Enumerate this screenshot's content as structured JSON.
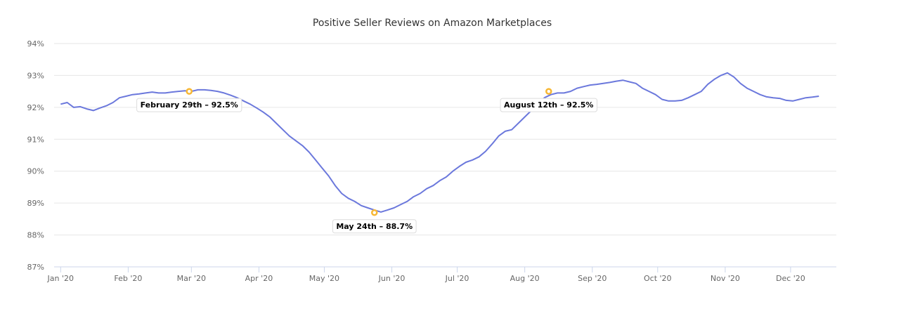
{
  "chart_data": {
    "type": "line",
    "title": "Positive Seller Reviews on Amazon Marketplaces",
    "xlabel": "",
    "ylabel": "",
    "ylim": [
      87,
      94
    ],
    "y_ticks": [
      87,
      88,
      89,
      90,
      91,
      92,
      93,
      94
    ],
    "y_tick_suffix": "%",
    "x_ticks": [
      {
        "day": 0,
        "label": "Jan '20"
      },
      {
        "day": 31,
        "label": "Feb '20"
      },
      {
        "day": 60,
        "label": "Mar '20"
      },
      {
        "day": 91,
        "label": "Apr '20"
      },
      {
        "day": 121,
        "label": "May '20"
      },
      {
        "day": 152,
        "label": "Jun '20"
      },
      {
        "day": 182,
        "label": "Jul '20"
      },
      {
        "day": 213,
        "label": "Aug '20"
      },
      {
        "day": 244,
        "label": "Sep '20"
      },
      {
        "day": 274,
        "label": "Oct '20"
      },
      {
        "day": 305,
        "label": "Nov '20"
      },
      {
        "day": 335,
        "label": "Dec '20"
      }
    ],
    "x_range": [
      -3,
      356
    ],
    "series": [
      {
        "name": "Positive Seller Reviews",
        "color": "#6b78dc",
        "points": [
          [
            0,
            92.1
          ],
          [
            3,
            92.15
          ],
          [
            6,
            92.0
          ],
          [
            9,
            92.02
          ],
          [
            12,
            91.95
          ],
          [
            15,
            91.9
          ],
          [
            18,
            91.98
          ],
          [
            21,
            92.05
          ],
          [
            24,
            92.15
          ],
          [
            27,
            92.3
          ],
          [
            30,
            92.35
          ],
          [
            33,
            92.4
          ],
          [
            36,
            92.42
          ],
          [
            39,
            92.45
          ],
          [
            42,
            92.48
          ],
          [
            45,
            92.45
          ],
          [
            48,
            92.45
          ],
          [
            51,
            92.48
          ],
          [
            54,
            92.5
          ],
          [
            57,
            92.52
          ],
          [
            60,
            92.5
          ],
          [
            63,
            92.55
          ],
          [
            66,
            92.55
          ],
          [
            69,
            92.53
          ],
          [
            72,
            92.5
          ],
          [
            75,
            92.45
          ],
          [
            78,
            92.38
          ],
          [
            81,
            92.3
          ],
          [
            84,
            92.2
          ],
          [
            87,
            92.1
          ],
          [
            90,
            91.98
          ],
          [
            93,
            91.85
          ],
          [
            96,
            91.7
          ],
          [
            99,
            91.5
          ],
          [
            102,
            91.3
          ],
          [
            105,
            91.1
          ],
          [
            108,
            90.95
          ],
          [
            111,
            90.8
          ],
          [
            114,
            90.6
          ],
          [
            117,
            90.35
          ],
          [
            120,
            90.1
          ],
          [
            123,
            89.85
          ],
          [
            126,
            89.55
          ],
          [
            129,
            89.3
          ],
          [
            132,
            89.15
          ],
          [
            135,
            89.05
          ],
          [
            138,
            88.92
          ],
          [
            141,
            88.85
          ],
          [
            144,
            88.78
          ],
          [
            147,
            88.72
          ],
          [
            150,
            88.78
          ],
          [
            153,
            88.85
          ],
          [
            156,
            88.95
          ],
          [
            159,
            89.05
          ],
          [
            162,
            89.2
          ],
          [
            165,
            89.3
          ],
          [
            168,
            89.45
          ],
          [
            171,
            89.55
          ],
          [
            174,
            89.7
          ],
          [
            177,
            89.82
          ],
          [
            180,
            90.0
          ],
          [
            183,
            90.15
          ],
          [
            186,
            90.28
          ],
          [
            189,
            90.35
          ],
          [
            192,
            90.45
          ],
          [
            195,
            90.62
          ],
          [
            198,
            90.85
          ],
          [
            201,
            91.1
          ],
          [
            204,
            91.25
          ],
          [
            207,
            91.3
          ],
          [
            210,
            91.5
          ],
          [
            213,
            91.7
          ],
          [
            216,
            91.9
          ],
          [
            219,
            92.1
          ],
          [
            222,
            92.3
          ],
          [
            225,
            92.4
          ],
          [
            228,
            92.45
          ],
          [
            231,
            92.45
          ],
          [
            234,
            92.5
          ],
          [
            237,
            92.6
          ],
          [
            240,
            92.65
          ],
          [
            243,
            92.7
          ],
          [
            246,
            92.72
          ],
          [
            249,
            92.75
          ],
          [
            252,
            92.78
          ],
          [
            255,
            92.82
          ],
          [
            258,
            92.85
          ],
          [
            261,
            92.8
          ],
          [
            264,
            92.75
          ],
          [
            267,
            92.6
          ],
          [
            270,
            92.5
          ],
          [
            273,
            92.4
          ],
          [
            276,
            92.25
          ],
          [
            279,
            92.2
          ],
          [
            282,
            92.2
          ],
          [
            285,
            92.22
          ],
          [
            288,
            92.3
          ],
          [
            291,
            92.4
          ],
          [
            294,
            92.5
          ],
          [
            297,
            92.72
          ],
          [
            300,
            92.88
          ],
          [
            303,
            93.0
          ],
          [
            306,
            93.08
          ],
          [
            309,
            92.95
          ],
          [
            312,
            92.75
          ],
          [
            315,
            92.6
          ],
          [
            318,
            92.5
          ],
          [
            321,
            92.4
          ],
          [
            324,
            92.33
          ],
          [
            327,
            92.3
          ],
          [
            330,
            92.28
          ],
          [
            333,
            92.22
          ],
          [
            336,
            92.2
          ],
          [
            339,
            92.25
          ],
          [
            342,
            92.3
          ],
          [
            345,
            92.32
          ],
          [
            348,
            92.35
          ]
        ]
      }
    ],
    "annotations": [
      {
        "day": 59,
        "value": 92.5,
        "label": "February 29th – 92.5%"
      },
      {
        "day": 144,
        "value": 88.7,
        "label": "May 24th – 88.7%"
      },
      {
        "day": 224,
        "value": 92.5,
        "label": "August 12th – 92.5%"
      }
    ]
  }
}
